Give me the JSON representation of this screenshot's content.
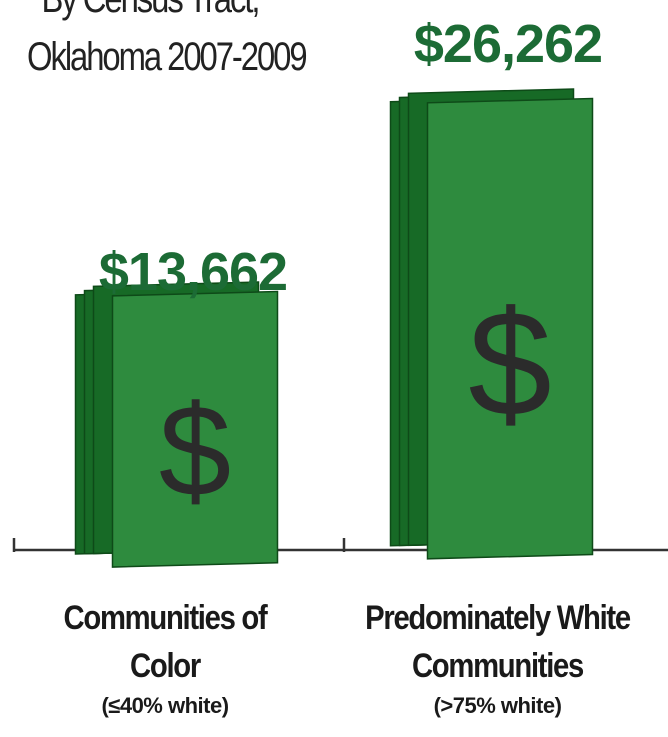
{
  "title_lines": [
    "By Census Tract,",
    "Oklahoma 2007-2009"
  ],
  "colors": {
    "money_green": "#2e8b3e",
    "money_dark": "#176a26",
    "label_green": "#1c6b35",
    "glyph": "#2b2b2b",
    "axis": "#333333"
  },
  "chart_data": {
    "type": "bar",
    "categories": [
      "Communities of Color",
      "Predominately White Communities"
    ],
    "category_notes": [
      "(≤40% white)",
      "(>75% white)"
    ],
    "values": [
      13662,
      26262
    ],
    "value_labels": [
      "$13,662",
      "$26,262"
    ],
    "bar_symbol": "$",
    "ylim": [
      0,
      26262
    ]
  }
}
